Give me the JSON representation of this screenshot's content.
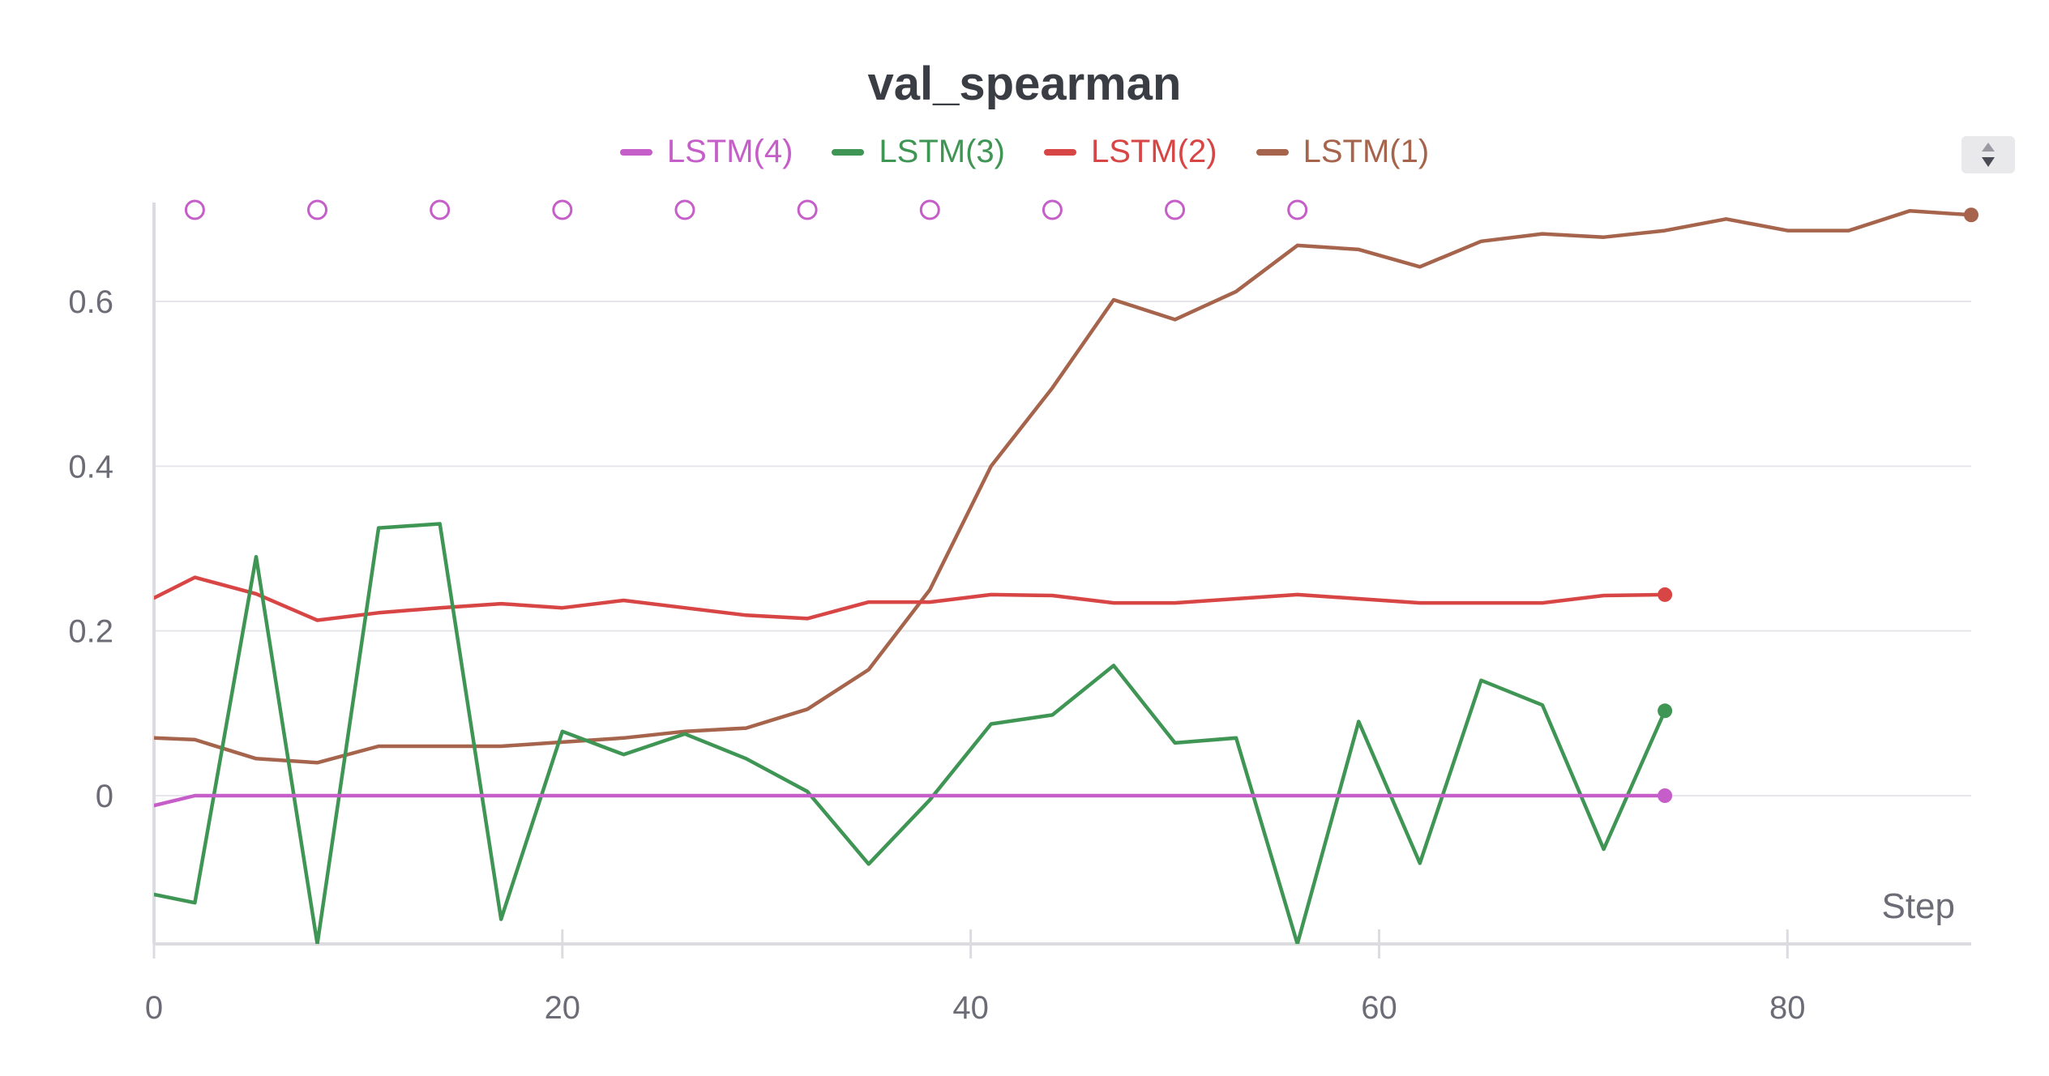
{
  "chart_data": {
    "type": "line",
    "title": "val_spearman",
    "xlabel": "Step",
    "ylabel": "",
    "xlim": [
      0,
      89
    ],
    "ylim": [
      -0.18,
      0.72
    ],
    "xticks": [
      0,
      20,
      40,
      60,
      80
    ],
    "yticks": [
      0,
      0.2,
      0.4,
      0.6
    ],
    "ytick_labels": [
      "0",
      "0.2",
      "0.4",
      "0.6"
    ],
    "grid": true,
    "legend_position": "top-center",
    "series": [
      {
        "name": "LSTM(4)",
        "color": "#c55ec8",
        "x": [
          0,
          2,
          74
        ],
        "values": [
          -0.012,
          0.0,
          0.0
        ],
        "marker_row_x": [
          2,
          8,
          14,
          20,
          26,
          32,
          38,
          44,
          50,
          56
        ]
      },
      {
        "name": "LSTM(3)",
        "color": "#3f9554",
        "x": [
          0,
          2,
          5,
          8,
          11,
          14,
          17,
          20,
          23,
          26,
          29,
          32,
          35,
          38,
          41,
          44,
          47,
          50,
          53,
          56,
          59,
          62,
          65,
          68,
          71,
          74
        ],
        "values": [
          -0.12,
          -0.13,
          0.29,
          -0.18,
          0.325,
          0.33,
          -0.15,
          0.078,
          0.05,
          0.075,
          0.045,
          0.005,
          -0.083,
          -0.005,
          0.087,
          0.098,
          0.158,
          0.064,
          0.07,
          -0.18,
          0.09,
          -0.082,
          0.14,
          0.11,
          -0.065,
          0.103
        ]
      },
      {
        "name": "LSTM(2)",
        "color": "#d84545",
        "x": [
          0,
          2,
          5,
          8,
          11,
          14,
          17,
          20,
          23,
          26,
          29,
          32,
          35,
          38,
          41,
          44,
          47,
          50,
          53,
          56,
          59,
          62,
          65,
          68,
          71,
          74
        ],
        "values": [
          0.24,
          0.265,
          0.245,
          0.213,
          0.222,
          0.228,
          0.233,
          0.228,
          0.237,
          0.228,
          0.219,
          0.215,
          0.235,
          0.235,
          0.244,
          0.243,
          0.234,
          0.234,
          0.239,
          0.244,
          0.239,
          0.234,
          0.234,
          0.234,
          0.243,
          0.244
        ]
      },
      {
        "name": "LSTM(1)",
        "color": "#a5644b",
        "x": [
          0,
          2,
          5,
          8,
          11,
          14,
          17,
          20,
          23,
          26,
          29,
          32,
          35,
          38,
          41,
          44,
          47,
          50,
          53,
          56,
          59,
          62,
          65,
          68,
          71,
          74,
          77,
          80,
          83,
          86,
          89
        ],
        "values": [
          0.07,
          0.068,
          0.045,
          0.04,
          0.06,
          0.06,
          0.06,
          0.065,
          0.07,
          0.078,
          0.082,
          0.105,
          0.153,
          0.25,
          0.4,
          0.495,
          0.602,
          0.578,
          0.612,
          0.668,
          0.663,
          0.642,
          0.673,
          0.682,
          0.678,
          0.686,
          0.7,
          0.686,
          0.686,
          0.71,
          0.705
        ]
      }
    ]
  }
}
